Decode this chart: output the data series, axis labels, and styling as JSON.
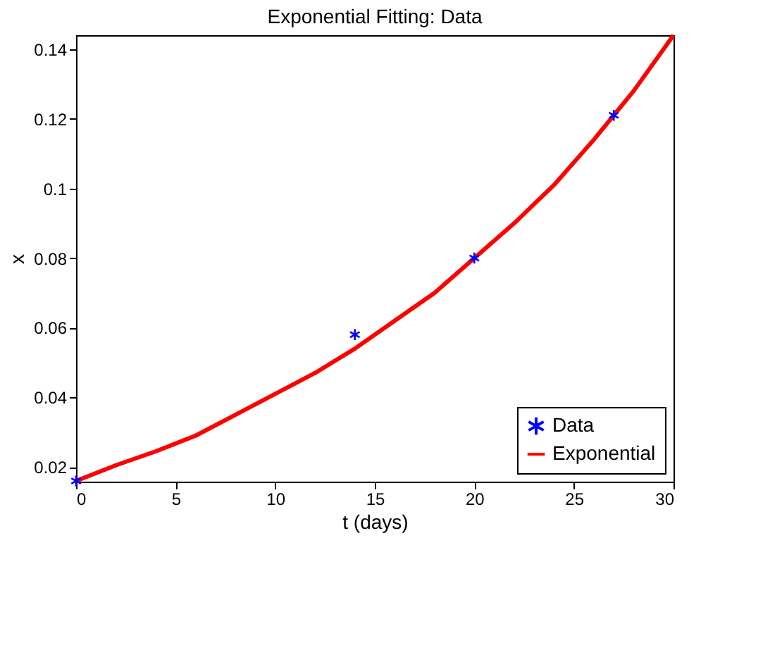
{
  "chart_data": {
    "type": "line",
    "title": "Exponential Fitting: Data",
    "xlabel": "t (days)",
    "ylabel": "x",
    "xlim": [
      0,
      30
    ],
    "xticks": [
      0,
      5,
      10,
      15,
      20,
      25,
      30
    ],
    "ylim": [
      0.0158,
      0.144
    ],
    "yticks": [
      0.02,
      0.04,
      0.06,
      0.08,
      {
        "value": 0.1,
        "label": "0.1"
      },
      0.12,
      0.14
    ],
    "series": [
      {
        "name": "Data",
        "type": "scatter",
        "color": "#0000ff",
        "marker": "cross",
        "x": [
          0,
          14,
          20,
          27
        ],
        "values": [
          0.016,
          0.058,
          0.08,
          0.121
        ]
      },
      {
        "name": "Exponential",
        "type": "line",
        "color": "#ff0000",
        "line_style": "solid",
        "x": [
          0,
          2,
          4,
          6,
          8,
          10,
          12,
          14,
          16,
          18,
          20,
          22,
          24,
          26,
          28,
          30
        ],
        "values": [
          0.016,
          0.0205,
          0.0245,
          0.029,
          0.035,
          0.041,
          0.047,
          0.054,
          0.062,
          0.07,
          0.08,
          0.09,
          0.101,
          0.114,
          0.128,
          0.144
        ]
      }
    ],
    "grid": false,
    "legend": "bottom right"
  }
}
